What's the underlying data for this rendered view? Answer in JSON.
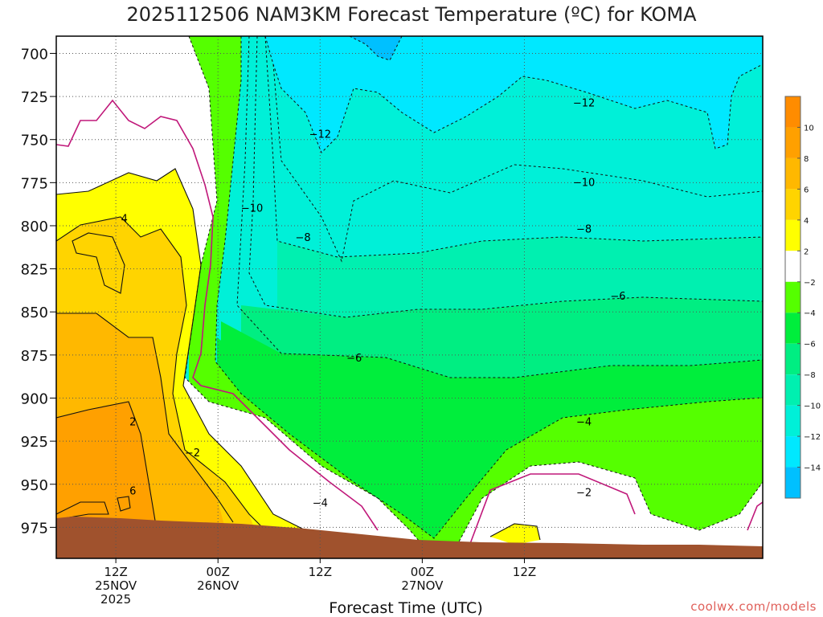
{
  "chart_data": {
    "type": "heatmap",
    "title": "2025112506 NAM3KM Forecast Temperature (ºC) for KOMA",
    "xlabel": "Forecast Time (UTC)",
    "ylabel": "",
    "credit": "coolwx.com/models",
    "y_axis": {
      "units": "hPa",
      "inverted": true,
      "range": [
        690,
        993
      ],
      "ticks": [
        "700",
        "725",
        "750",
        "775",
        "800",
        "825",
        "850",
        "875",
        "900",
        "925",
        "950",
        "975"
      ]
    },
    "x_axis": {
      "units": "hours from 2025-11-25 00Z",
      "range": [
        5,
        88
      ],
      "ticks": [
        {
          "line1": "12Z",
          "line2": "25NOV",
          "line3": "2025"
        },
        {
          "line1": "00Z",
          "line2": "26NOV",
          "line3": ""
        },
        {
          "line1": "12Z",
          "line2": "",
          "line3": ""
        },
        {
          "line1": "00Z",
          "line2": "27NOV",
          "line3": ""
        },
        {
          "line1": "12Z",
          "line2": "",
          "line3": ""
        }
      ]
    },
    "grid": true,
    "colorbar": {
      "placement": "right",
      "labels": [
        "10",
        "8",
        "6",
        "4",
        "2",
        "−2",
        "−4",
        "−6",
        "−8",
        "−10",
        "−12",
        "−14"
      ],
      "colors": [
        "#ff8c00",
        "#ffa000",
        "#ffb800",
        "#ffd400",
        "#ffff00",
        "#ffffff",
        "#55ff00",
        "#00ee3c",
        "#00ee82",
        "#00f0b0",
        "#00f0d8",
        "#00e8ff",
        "#00c0ff"
      ]
    },
    "contour_labels": [
      {
        "text": "−12",
        "x": 36,
        "p": 747
      },
      {
        "text": "−12",
        "x": 67,
        "p": 729
      },
      {
        "text": "−10",
        "x": 28,
        "p": 790
      },
      {
        "text": "−10",
        "x": 67,
        "p": 775
      },
      {
        "text": "−8",
        "x": 34,
        "p": 807
      },
      {
        "text": "−8",
        "x": 67,
        "p": 802
      },
      {
        "text": "−6",
        "x": 40,
        "p": 877
      },
      {
        "text": "−6",
        "x": 71,
        "p": 841
      },
      {
        "text": "−4",
        "x": 36,
        "p": 961
      },
      {
        "text": "−4",
        "x": 67,
        "p": 914
      },
      {
        "text": "−2",
        "x": 21,
        "p": 932
      },
      {
        "text": "−2",
        "x": 67,
        "p": 955
      },
      {
        "text": "4",
        "x": 13,
        "p": 796
      },
      {
        "text": "2",
        "x": 14,
        "p": 914
      },
      {
        "text": "6",
        "x": 14,
        "p": 954
      }
    ]
  }
}
